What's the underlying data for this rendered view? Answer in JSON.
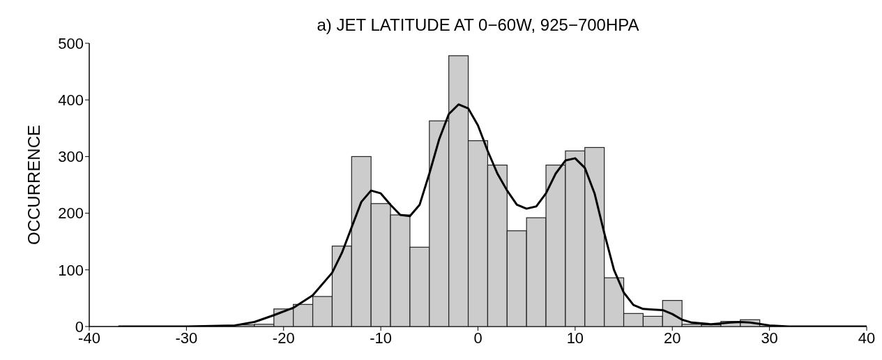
{
  "chart_data": {
    "type": "histogram",
    "title": "a) JET LATITUDE AT 0−60W, 925−700HPA",
    "ylabel": "OCCURRENCE",
    "bins": [
      -25,
      -23,
      -21,
      -19,
      -17,
      -15,
      -13,
      -11,
      -9,
      -7,
      -5,
      -3,
      -1,
      1,
      3,
      5,
      7,
      9,
      11,
      13,
      15,
      17,
      19,
      21,
      23,
      25,
      27,
      29
    ],
    "values": [
      3,
      4,
      31,
      39,
      53,
      142,
      300,
      217,
      197,
      140,
      363,
      478,
      328,
      285,
      169,
      192,
      285,
      310,
      316,
      86,
      23,
      18,
      46,
      4,
      3,
      9,
      12
    ],
    "color": "#cccccc",
    "series": [
      {
        "type": "line",
        "color": "#000000",
        "x": [
          -37,
          -30,
          -25,
          -23,
          -21,
          -19,
          -17,
          -15,
          -14,
          -13,
          -12,
          -11,
          -10,
          -9,
          -8,
          -7,
          -6,
          -5,
          -4,
          -3,
          -2,
          -1,
          0,
          1,
          2,
          3,
          4,
          5,
          6,
          7,
          8,
          9,
          10,
          11,
          12,
          13,
          14,
          15,
          16,
          17,
          18,
          19,
          20,
          21,
          22,
          24,
          26,
          27,
          28,
          30,
          32,
          40
        ],
        "values": [
          0,
          0,
          2,
          8,
          20,
          33,
          55,
          95,
          130,
          175,
          220,
          240,
          235,
          215,
          197,
          195,
          215,
          270,
          330,
          375,
          392,
          385,
          355,
          310,
          270,
          240,
          215,
          208,
          212,
          235,
          270,
          293,
          297,
          280,
          235,
          165,
          100,
          60,
          38,
          31,
          30,
          29,
          22,
          12,
          7,
          4,
          7,
          8,
          7,
          2,
          0,
          0
        ]
      }
    ],
    "xlim": [
      -40,
      40
    ],
    "xticks": [
      -40,
      -30,
      -20,
      -10,
      0,
      10,
      20,
      30,
      40
    ],
    "ylim": [
      0,
      500
    ],
    "yticks": [
      0,
      100,
      200,
      300,
      400,
      500
    ]
  }
}
